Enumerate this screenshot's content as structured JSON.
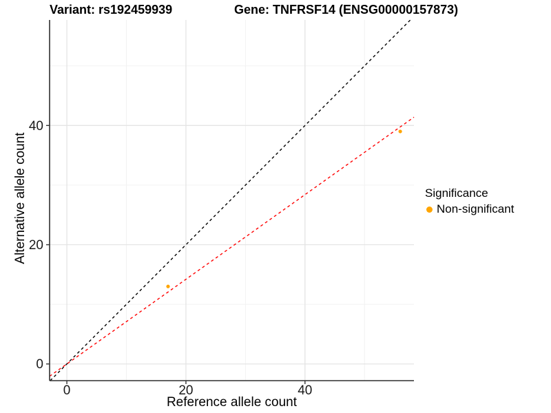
{
  "header": {
    "variant_title": "Variant: rs192459939",
    "gene_title": "Gene: TNFRSF14 (ENSG00000157873)"
  },
  "chart_data": {
    "type": "scatter",
    "xlabel": "Reference allele count",
    "ylabel": "Alternative allele count",
    "xlim": [
      -2.9,
      58.3
    ],
    "ylim": [
      -2.8,
      57.7
    ],
    "x_ticks": [
      0,
      20,
      40
    ],
    "y_ticks": [
      0,
      20,
      40
    ],
    "x_minor_ticks": [
      10,
      30,
      50
    ],
    "y_minor_ticks": [
      10,
      30,
      50
    ],
    "grid": true,
    "series": [
      {
        "name": "Non-significant",
        "color": "#FFA500",
        "points": [
          {
            "x": 17,
            "y": 13
          },
          {
            "x": 56,
            "y": 39
          }
        ]
      }
    ],
    "lines": [
      {
        "name": "identity-line",
        "slope": 1,
        "intercept": 0,
        "color": "#000000",
        "style": "dashed"
      },
      {
        "name": "fit-line",
        "slope": 0.71,
        "intercept": 0,
        "color": "#FF0000",
        "style": "dashed"
      }
    ],
    "legend": {
      "title": "Significance",
      "position": "right",
      "items": [
        {
          "label": "Non-significant",
          "color": "#FFA500"
        }
      ]
    },
    "style": {
      "background": "#FFFFFF",
      "grid_major_color": "#E4E4E4",
      "grid_minor_color": "#F2F2F2",
      "axis_line_color": "#2E2E2E",
      "tick_color": "#333333",
      "text_color": "#1A1A1A"
    }
  }
}
